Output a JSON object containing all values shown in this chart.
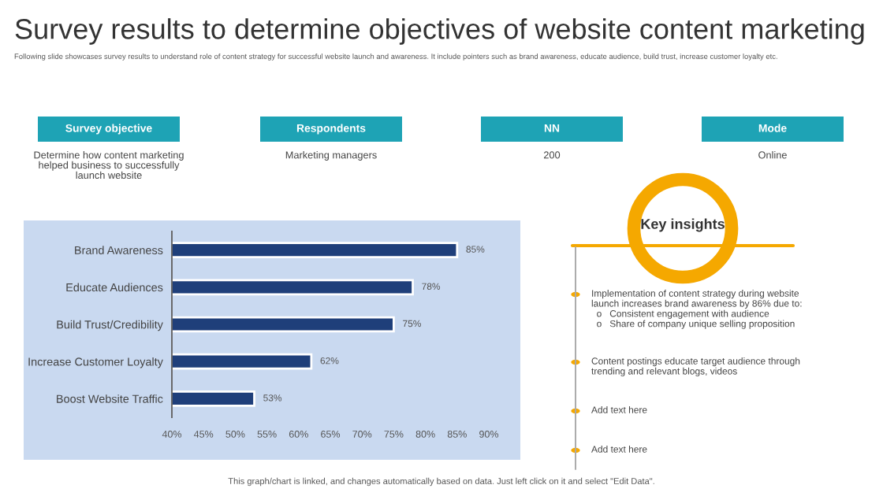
{
  "chart_data": {
    "type": "bar",
    "orientation": "horizontal",
    "title": "Survey results to determine objectives of website content marketing",
    "subtitle": "Following slide showcases survey results to understand role of content strategy for successful website launch and awareness. It include pointers such as brand awareness, educate audience, build trust, increase customer loyalty etc.",
    "categories": [
      "Brand Awareness",
      "Educate Audiences",
      "Build Trust/Credibility",
      "Increase Customer Loyalty",
      "Boost Website Traffic"
    ],
    "values": [
      85,
      78,
      75,
      62,
      53
    ],
    "value_labels": [
      "85%",
      "78%",
      "75%",
      "62%",
      "53%"
    ],
    "color": "#1f3f7a",
    "xlim": [
      40,
      90
    ],
    "xticks": [
      {
        "value": 40,
        "label": "40%"
      },
      {
        "value": 45,
        "label": "45%"
      },
      {
        "value": 50,
        "label": "50%"
      },
      {
        "value": 55,
        "label": "55%"
      },
      {
        "value": 60,
        "label": "60%"
      },
      {
        "value": 65,
        "label": "65%"
      },
      {
        "value": 70,
        "label": "70%"
      },
      {
        "value": 75,
        "label": "75%"
      },
      {
        "value": 80,
        "label": "80%"
      },
      {
        "value": 85,
        "label": "85%"
      },
      {
        "value": 90,
        "label": "90%"
      }
    ],
    "grid": false,
    "annotations": [
      "Survey objective",
      "Respondents",
      "NN",
      "Mode",
      "Determine how content marketing\nhelped business to successfully\nlaunch website",
      "Marketing managers",
      "200",
      "Online",
      "Key insights",
      "Implementation of content strategy during website\nlaunch increases brand awareness by 86% due to:\n  o   Consistent engagement with audience\n  o   Share of company unique selling proposition",
      "Content postings educate target audience through\ntrending and relevant blogs, videos",
      "Add text here",
      "Add text here",
      "This graph/chart is linked, and changes automatically based on data. Just left click on it and select \"Edit Data\"."
    ]
  }
}
